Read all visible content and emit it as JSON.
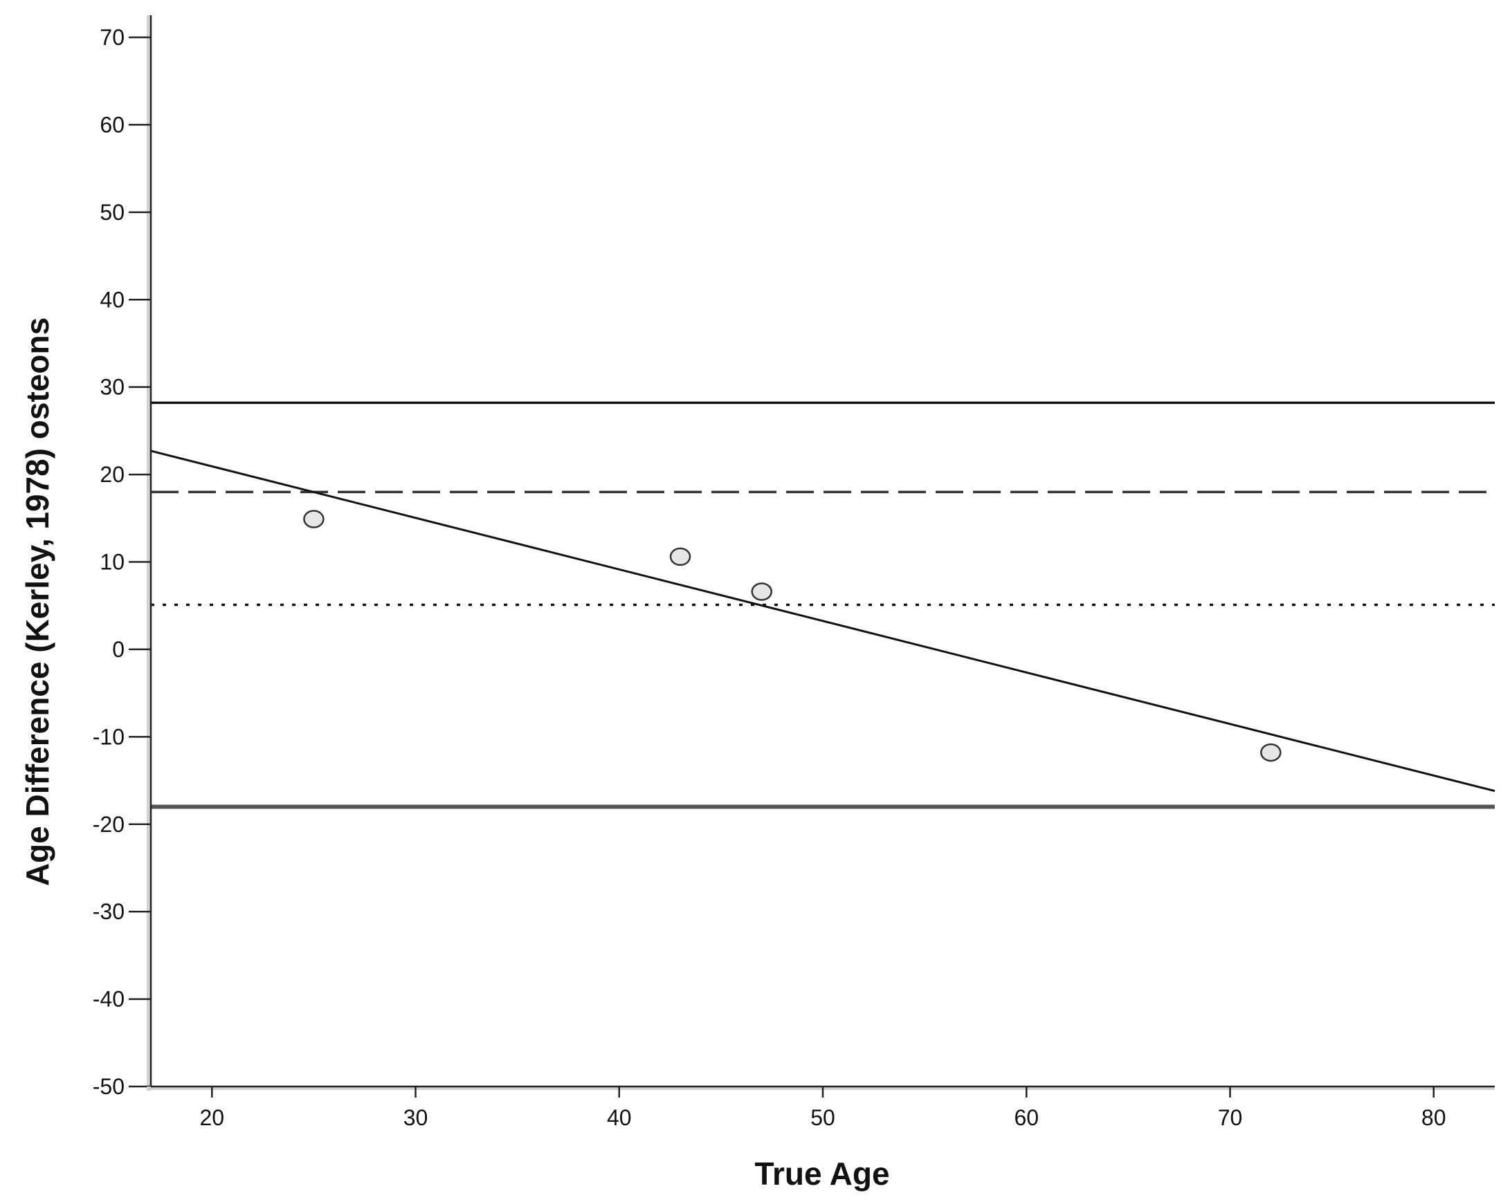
{
  "chart_data": {
    "type": "scatter",
    "xlabel": "True Age",
    "ylabel": "Age Difference (Kerley, 1978) osteons",
    "xlim": [
      17,
      83
    ],
    "ylim": [
      -50,
      70
    ],
    "x_ticks": [
      20,
      30,
      40,
      50,
      60,
      70,
      80
    ],
    "y_ticks": [
      70,
      60,
      50,
      40,
      30,
      20,
      10,
      0,
      -10,
      -20,
      -30,
      -40,
      -50
    ],
    "x_tick_labels": [
      "20",
      "30",
      "40",
      "50",
      "60",
      "70",
      "80"
    ],
    "y_tick_labels": [
      "70",
      "60",
      "50",
      "40",
      "30",
      "20",
      "10",
      "0",
      "-10",
      "-20",
      "-30",
      "-40",
      "-50"
    ],
    "grid": false,
    "points": [
      {
        "x": 25,
        "y": 14.9
      },
      {
        "x": 43,
        "y": 10.6
      },
      {
        "x": 47,
        "y": 6.6
      },
      {
        "x": 72,
        "y": -11.8
      }
    ],
    "reference_lines": [
      {
        "y": 28.2,
        "style": "solid"
      },
      {
        "y": 18.0,
        "style": "dashed"
      },
      {
        "y": 5.1,
        "style": "dotted"
      },
      {
        "y": -18.0,
        "style": "solid-thick"
      }
    ],
    "regression_line": {
      "x": [
        17,
        83
      ],
      "y": [
        22.7,
        -16.2
      ]
    },
    "colors": {
      "line": "#111111",
      "marker_fill": "#e6e6e6",
      "axis": "#222222",
      "axis_shadow": "#d0d0d0"
    }
  }
}
